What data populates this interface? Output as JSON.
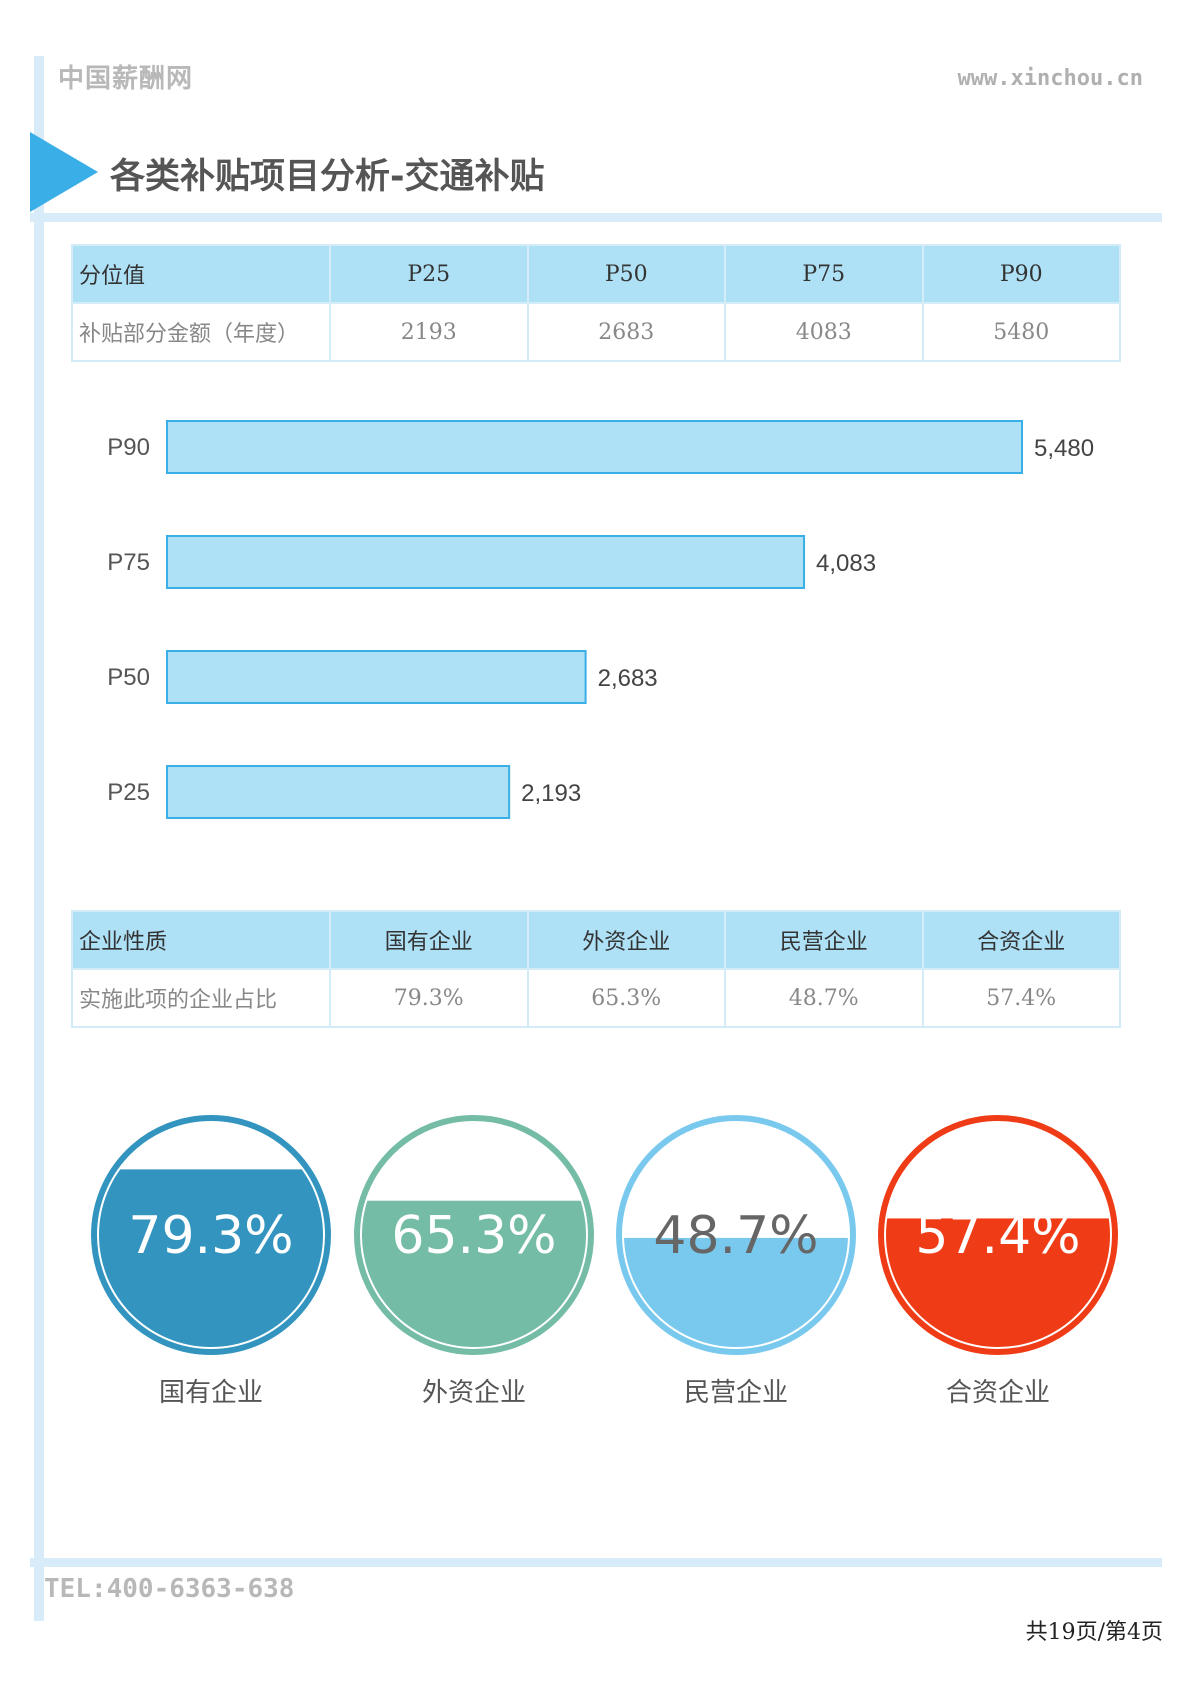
{
  "header": {
    "site_name": "中国薪酬网",
    "site_url": "www.xinchou.cn",
    "title": "各类补贴项目分析-交通补贴"
  },
  "table1": {
    "head": [
      "分位值",
      "P25",
      "P50",
      "P75",
      "P90"
    ],
    "row": [
      "补贴部分金额（年度）",
      "2193",
      "2683",
      "4083",
      "5480"
    ]
  },
  "chart_data": {
    "type": "bar",
    "orientation": "horizontal",
    "categories": [
      "P90",
      "P75",
      "P50",
      "P25"
    ],
    "values": [
      5480,
      4083,
      2683,
      2193
    ],
    "value_labels": [
      "5,480",
      "4,083",
      "2,683",
      "2,193"
    ],
    "color": "#aee0f6",
    "border_color": "#3aaee6"
  },
  "table2": {
    "head": [
      "企业性质",
      "国有企业",
      "外资企业",
      "民营企业",
      "合资企业"
    ],
    "row": [
      "实施此项的企业占比",
      "79.3%",
      "65.3%",
      "48.7%",
      "57.4%"
    ]
  },
  "circles": [
    {
      "label": "国有企业",
      "pct_text": "79.3%",
      "value": 0.793,
      "color": "#3395bf",
      "text_color": "#ffffff"
    },
    {
      "label": "外资企业",
      "pct_text": "65.3%",
      "value": 0.653,
      "color": "#74bca5",
      "text_color": "#ffffff"
    },
    {
      "label": "民营企业",
      "pct_text": "48.7%",
      "value": 0.487,
      "color": "#79c9ef",
      "text_color": "#666666"
    },
    {
      "label": "合资企业",
      "pct_text": "57.4%",
      "value": 0.574,
      "color": "#ef3c17",
      "text_color": "#ffffff"
    }
  ],
  "footer": {
    "tel": "TEL:400-6363-638",
    "page": "共19页/第4页"
  }
}
